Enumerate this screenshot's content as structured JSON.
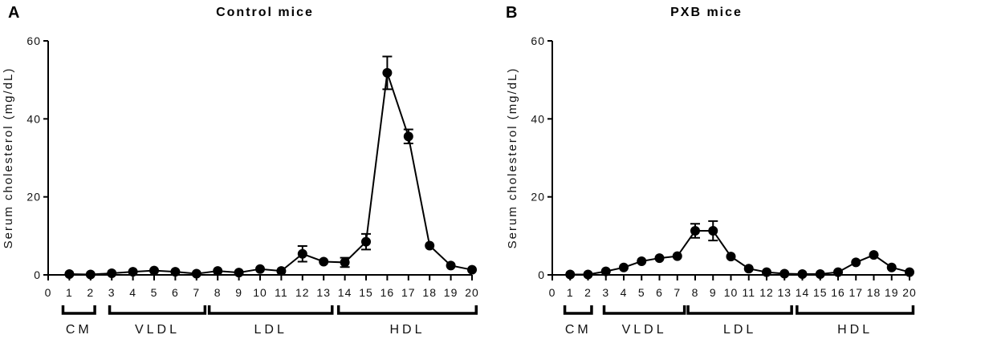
{
  "chart_data": [
    {
      "type": "line",
      "panel_letter": "A",
      "title": "Control mice",
      "ylabel": "Serum cholesterol (mg/dL)",
      "xlabel": "",
      "xlim": [
        0,
        20
      ],
      "ylim": [
        0,
        60
      ],
      "yticks": [
        0,
        20,
        40,
        60
      ],
      "xticks": [
        0,
        1,
        2,
        3,
        4,
        5,
        6,
        7,
        8,
        9,
        10,
        11,
        12,
        13,
        14,
        15,
        16,
        17,
        18,
        19,
        20
      ],
      "x": [
        1,
        2,
        3,
        4,
        5,
        6,
        7,
        8,
        9,
        10,
        11,
        12,
        13,
        14,
        15,
        16,
        17,
        18,
        19,
        20
      ],
      "values": [
        0.2,
        0.1,
        0.4,
        0.8,
        1.1,
        0.8,
        0.3,
        1.0,
        0.6,
        1.5,
        1.0,
        5.4,
        3.4,
        3.2,
        8.5,
        51.8,
        35.5,
        7.5,
        2.4,
        1.3
      ],
      "errors": [
        0,
        0,
        0,
        0,
        0,
        0,
        0,
        0,
        0,
        0,
        0,
        2.0,
        0,
        1.2,
        2.0,
        4.2,
        1.8,
        0,
        0,
        0
      ],
      "groups": [
        {
          "label": "CM",
          "from": 0.7,
          "to": 2.2
        },
        {
          "label": "VLDL",
          "from": 2.9,
          "to": 7.4
        },
        {
          "label": "LDL",
          "from": 7.6,
          "to": 13.4
        },
        {
          "label": "HDL",
          "from": 13.7,
          "to": 20.2
        }
      ]
    },
    {
      "type": "line",
      "panel_letter": "B",
      "title": "PXB mice",
      "ylabel": "Serum cholesterol (mg/dL)",
      "xlabel": "",
      "xlim": [
        0,
        20
      ],
      "ylim": [
        0,
        60
      ],
      "yticks": [
        0,
        20,
        40,
        60
      ],
      "xticks": [
        0,
        1,
        2,
        3,
        4,
        5,
        6,
        7,
        8,
        9,
        10,
        11,
        12,
        13,
        14,
        15,
        16,
        17,
        18,
        19,
        20
      ],
      "x": [
        1,
        2,
        3,
        4,
        5,
        6,
        7,
        8,
        9,
        10,
        11,
        12,
        13,
        14,
        15,
        16,
        17,
        18,
        19,
        20
      ],
      "values": [
        0.1,
        0.1,
        0.9,
        1.9,
        3.5,
        4.3,
        4.8,
        11.3,
        11.3,
        4.7,
        1.6,
        0.7,
        0.3,
        0.2,
        0.2,
        0.7,
        3.2,
        5.1,
        1.9,
        0.7
      ],
      "errors": [
        0,
        0,
        0,
        0,
        0,
        0,
        0,
        1.8,
        2.5,
        0,
        0,
        0,
        0,
        0,
        0,
        0,
        0,
        0,
        0,
        0
      ],
      "groups": [
        {
          "label": "CM",
          "from": 0.7,
          "to": 2.2
        },
        {
          "label": "VLDL",
          "from": 2.9,
          "to": 7.4
        },
        {
          "label": "LDL",
          "from": 7.6,
          "to": 13.4
        },
        {
          "label": "HDL",
          "from": 13.7,
          "to": 20.2
        }
      ]
    }
  ]
}
